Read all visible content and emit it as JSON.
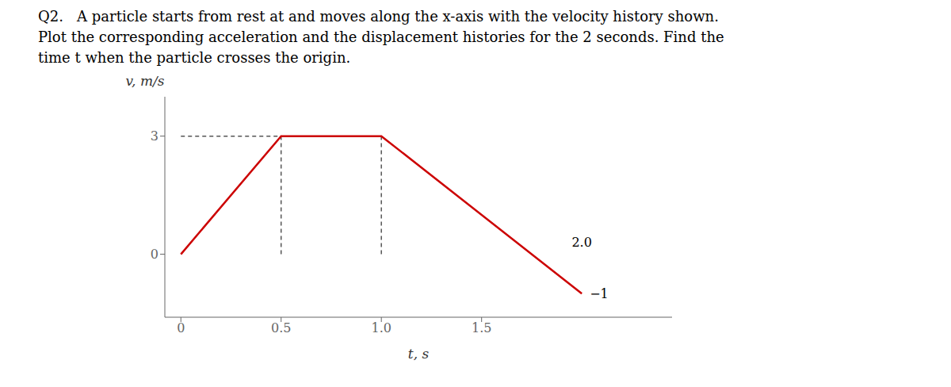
{
  "chart_data": {
    "type": "line",
    "title_lines": [
      "Q2.   A particle starts from rest at and moves along the x-axis with the velocity history shown.",
      "Plot the corresponding acceleration and the displacement histories for the 2 seconds. Find the",
      "time t when the particle crosses the origin."
    ],
    "x_label": "t, s",
    "y_label": "v, m/s",
    "x": [
      0,
      0.5,
      1.0,
      2.0
    ],
    "values": [
      0,
      3,
      3,
      -1
    ],
    "color": "#cc0000",
    "xlim": [
      -0.08,
      2.45
    ],
    "ylim": [
      -1.6,
      4.0
    ],
    "xticks": [
      0,
      0.5,
      {
        "value": 1.0,
        "label": "1.0"
      },
      1.5
    ],
    "yticks": [
      0,
      3
    ],
    "grid": false,
    "reference_lines": [
      {
        "x": [
          0,
          0.5
        ],
        "y": [
          3,
          3
        ],
        "color": "#555555",
        "line_style": "dashed"
      },
      {
        "x": [
          0.5,
          0.5
        ],
        "y": [
          0,
          3
        ],
        "color": "#555555",
        "line_style": "dashed"
      },
      {
        "x": [
          1.0,
          1.0
        ],
        "y": [
          0,
          3
        ],
        "color": "#555555",
        "line_style": "dashed"
      }
    ],
    "annotations": [
      {
        "text": "2.0",
        "x": 2.0,
        "y": 0
      },
      {
        "text": "−1",
        "x": 2.0,
        "y": -1
      }
    ]
  }
}
